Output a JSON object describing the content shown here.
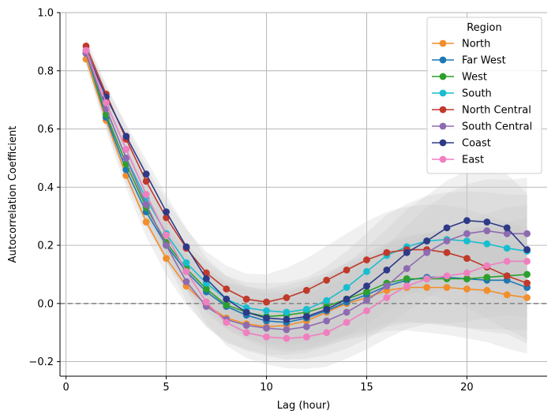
{
  "chart_data": {
    "type": "line",
    "xlabel": "Lag (hour)",
    "ylabel": "Autocorrelation Coefficient",
    "xlim": [
      -0.3,
      24
    ],
    "ylim": [
      -0.25,
      1.0
    ],
    "xticks": [
      0,
      5,
      10,
      15,
      20
    ],
    "yticks": [
      -0.2,
      0.0,
      0.2,
      0.4,
      0.6,
      0.8,
      1.0
    ],
    "ytick_labels": [
      "−0.2",
      "0.0",
      "0.2",
      "0.4",
      "0.6",
      "0.8",
      "1.0"
    ],
    "grid": true,
    "reference_line": {
      "y": 0,
      "style": "dashed",
      "color": "#888888"
    },
    "legend": {
      "title": "Region",
      "placement": "top-right"
    },
    "confidence_band_color": "#c8c8c8",
    "x": [
      1,
      2,
      3,
      4,
      5,
      6,
      7,
      8,
      9,
      10,
      11,
      12,
      13,
      14,
      15,
      16,
      17,
      18,
      19,
      20,
      21,
      22,
      23
    ],
    "series": [
      {
        "name": "North",
        "color": "#f28e2b",
        "values": [
          0.84,
          0.63,
          0.44,
          0.28,
          0.155,
          0.06,
          -0.005,
          -0.05,
          -0.07,
          -0.08,
          -0.075,
          -0.06,
          -0.03,
          0.0,
          0.02,
          0.045,
          0.055,
          0.055,
          0.055,
          0.05,
          0.045,
          0.03,
          0.02
        ]
      },
      {
        "name": "Far West",
        "color": "#1f77b4",
        "values": [
          0.86,
          0.64,
          0.46,
          0.315,
          0.2,
          0.11,
          0.04,
          -0.01,
          -0.04,
          -0.06,
          -0.065,
          -0.05,
          -0.025,
          0.005,
          0.03,
          0.06,
          0.08,
          0.09,
          0.09,
          0.085,
          0.08,
          0.08,
          0.055
        ]
      },
      {
        "name": "West",
        "color": "#2ca02c",
        "values": [
          0.86,
          0.65,
          0.48,
          0.33,
          0.21,
          0.12,
          0.05,
          -0.005,
          -0.03,
          -0.045,
          -0.04,
          -0.03,
          -0.01,
          0.015,
          0.04,
          0.07,
          0.085,
          0.085,
          0.085,
          0.085,
          0.09,
          0.095,
          0.1
        ]
      },
      {
        "name": "South",
        "color": "#17becf",
        "values": [
          0.86,
          0.67,
          0.5,
          0.36,
          0.24,
          0.14,
          0.07,
          0.015,
          -0.015,
          -0.025,
          -0.03,
          -0.02,
          0.01,
          0.055,
          0.11,
          0.165,
          0.195,
          0.215,
          0.22,
          0.215,
          0.205,
          0.19,
          0.18
        ]
      },
      {
        "name": "North Central",
        "color": "#c0392b",
        "values": [
          0.885,
          0.72,
          0.565,
          0.42,
          0.295,
          0.19,
          0.105,
          0.05,
          0.015,
          0.005,
          0.02,
          0.045,
          0.08,
          0.115,
          0.15,
          0.175,
          0.185,
          0.185,
          0.175,
          0.155,
          0.125,
          0.095,
          0.07
        ]
      },
      {
        "name": "South Central",
        "color": "#8e6bb0",
        "values": [
          0.86,
          0.67,
          0.5,
          0.34,
          0.2,
          0.075,
          -0.01,
          -0.055,
          -0.075,
          -0.085,
          -0.09,
          -0.08,
          -0.06,
          -0.03,
          0.01,
          0.06,
          0.12,
          0.175,
          0.215,
          0.24,
          0.25,
          0.24,
          0.24
        ]
      },
      {
        "name": "Coast",
        "color": "#2e3a87",
        "values": [
          0.87,
          0.71,
          0.575,
          0.445,
          0.315,
          0.195,
          0.085,
          0.015,
          -0.03,
          -0.05,
          -0.055,
          -0.045,
          -0.02,
          0.015,
          0.06,
          0.115,
          0.175,
          0.215,
          0.26,
          0.285,
          0.28,
          0.26,
          0.185
        ]
      },
      {
        "name": "East",
        "color": "#f07fc0",
        "values": [
          0.87,
          0.69,
          0.53,
          0.375,
          0.235,
          0.11,
          0.005,
          -0.065,
          -0.1,
          -0.115,
          -0.12,
          -0.115,
          -0.1,
          -0.065,
          -0.025,
          0.02,
          0.06,
          0.085,
          0.095,
          0.105,
          0.13,
          0.145,
          0.145
        ]
      }
    ]
  }
}
